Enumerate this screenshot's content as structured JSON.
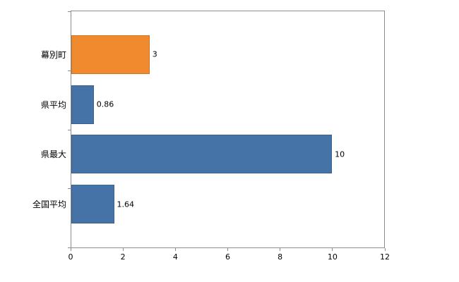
{
  "chart_data": {
    "type": "bar",
    "orientation": "horizontal",
    "title": "",
    "xlabel": "",
    "ylabel": "",
    "categories": [
      "幕別町",
      "県平均",
      "県最大",
      "全国平均"
    ],
    "values": [
      3,
      0.86,
      10,
      1.64
    ],
    "value_labels": [
      "3",
      "0.86",
      "10",
      "1.64"
    ],
    "bar_colors": [
      "#ef8b2e",
      "#4673a7",
      "#4673a7",
      "#4673a7"
    ],
    "xlim": [
      0,
      12
    ],
    "x_ticks": [
      0,
      2,
      4,
      6,
      8,
      10,
      12
    ],
    "x_tick_labels": [
      "0",
      "2",
      "4",
      "6",
      "8",
      "10",
      "12"
    ],
    "grid": false,
    "legend": false
  },
  "colors": {
    "axis": "#8c8c8c",
    "text": "#000000",
    "background": "#ffffff",
    "accent_orange": "#ef8b2e",
    "accent_blue": "#4673a7"
  }
}
